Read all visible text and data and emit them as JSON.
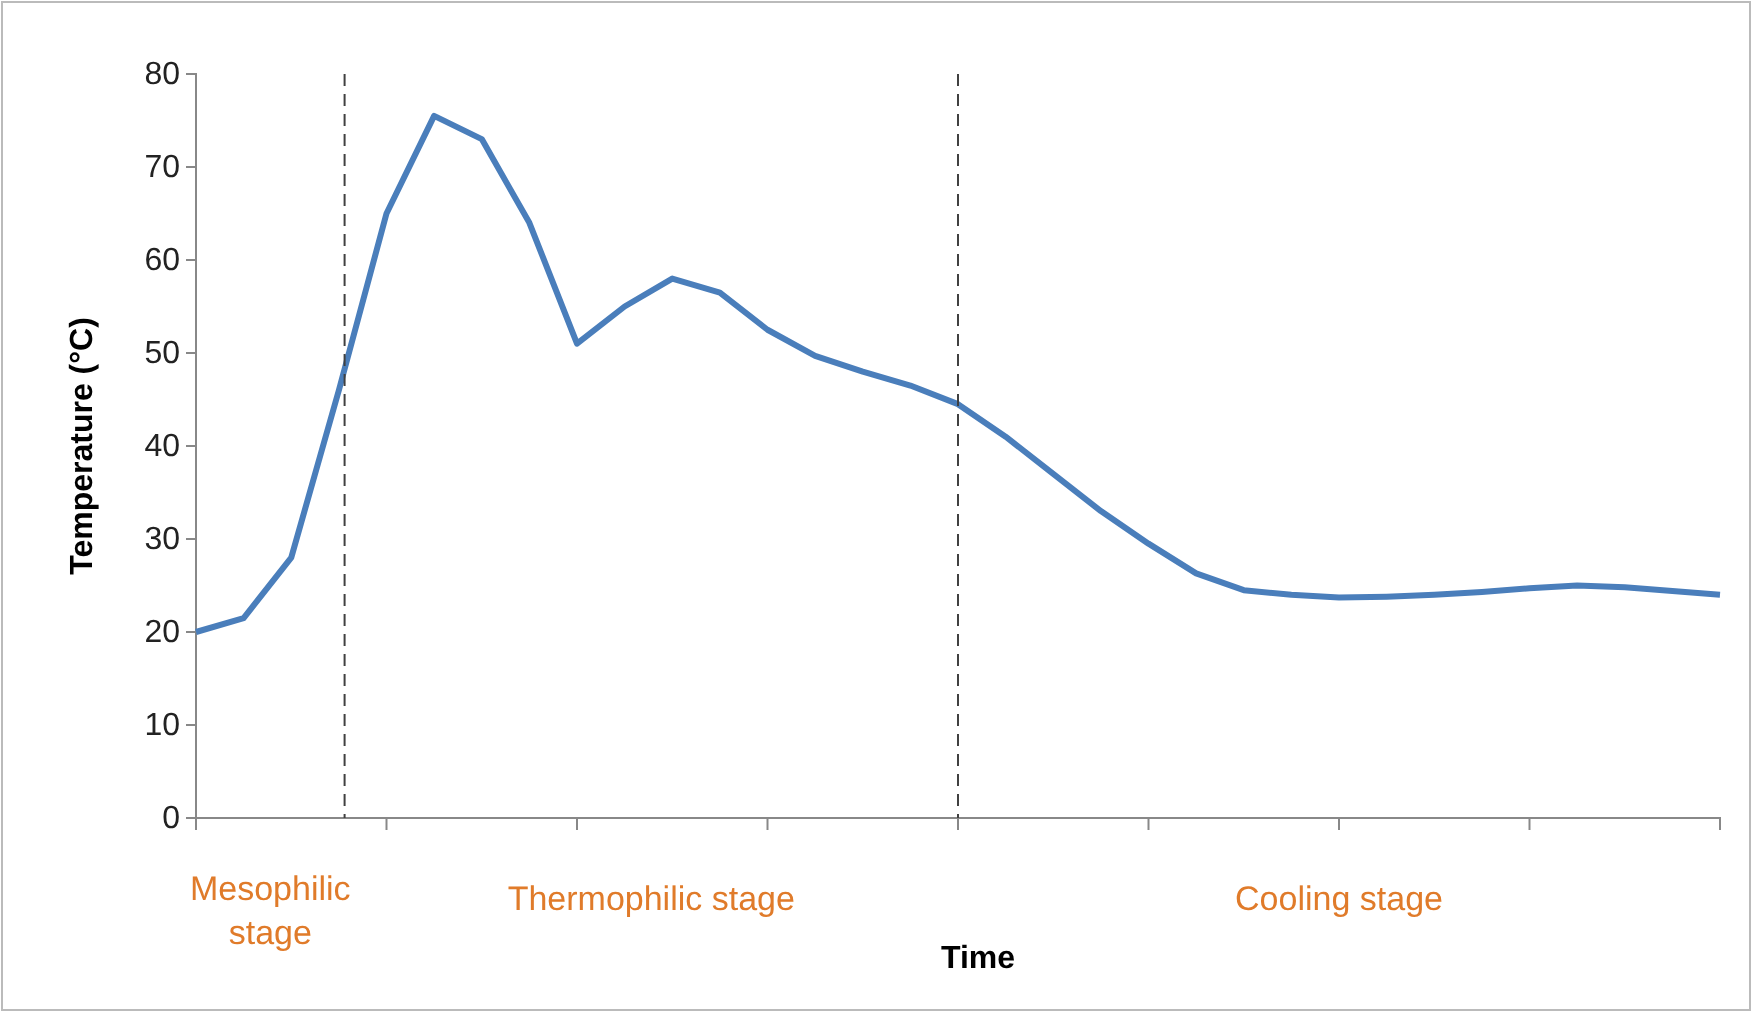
{
  "chart_data": {
    "type": "line",
    "xlabel": "Time",
    "ylabel": "Temperature (°C)",
    "categories": [
      null,
      null,
      null,
      null,
      null,
      null,
      null,
      null,
      null,
      null,
      null,
      null,
      null,
      null,
      null,
      null,
      null,
      null,
      null,
      null,
      null,
      null,
      null,
      null,
      null,
      null,
      null,
      null,
      null,
      null,
      null,
      null,
      null
    ],
    "series": [
      {
        "color": "#4a7ebb",
        "values": [
          20,
          21.5,
          28,
          46,
          65,
          75.5,
          73,
          64,
          51,
          55,
          58,
          56.5,
          52.5,
          49.7,
          48,
          46.5,
          44.5,
          41,
          37,
          33,
          29.5,
          26.3,
          24.5,
          24,
          23.7,
          23.8,
          24,
          24.3,
          24.7,
          25,
          24.8,
          24.4,
          24
        ]
      }
    ],
    "ylim": [
      0,
      80
    ],
    "yticks": [
      0,
      10,
      20,
      30,
      40,
      50,
      60,
      70,
      80
    ],
    "annotations": [
      "Mesophilic stage",
      "Thermophilic stage",
      "Cooling stage"
    ],
    "grid": false,
    "marker": "none",
    "line_style": "solid"
  }
}
